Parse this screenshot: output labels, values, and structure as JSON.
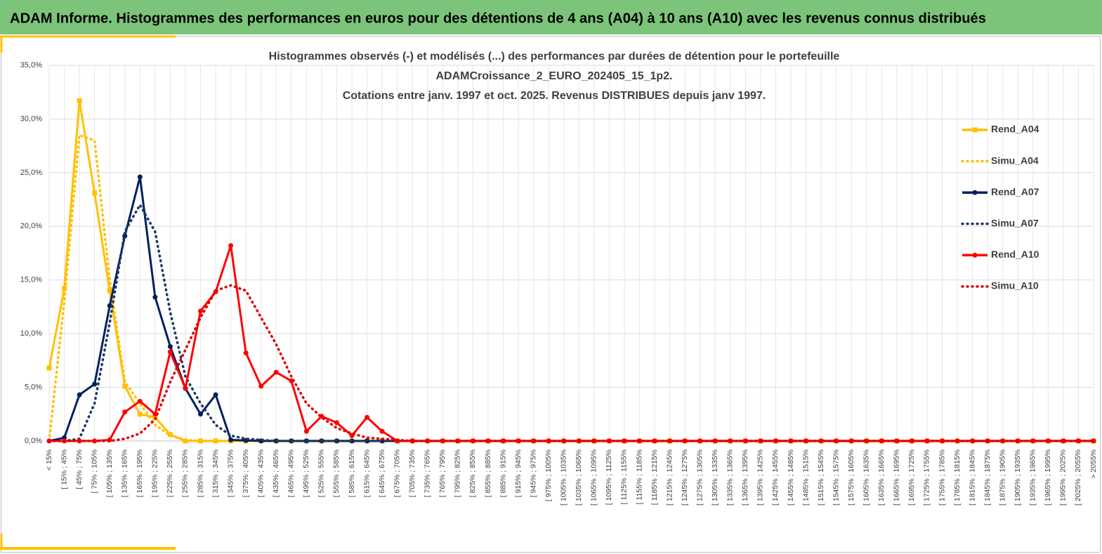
{
  "header": "ADAM Informe. Histogrammes des performances en euros pour des détentions de 4 ans (A04) à 10 ans (A10) avec les revenus connus distribués",
  "chart_data": {
    "type": "line",
    "title": [
      "Histogrammes observés (-) et modélisés (...) des performances par durées de détention pour le portefeuille",
      "ADAMCroissance_2_EURO_202405_15_1p2.",
      "Cotations entre janv. 1997 et oct. 2025. Revenus DISTRIBUES depuis janv 1997."
    ],
    "categories": [
      "< 15%",
      "[ 15% ; 45%",
      "[ 45% ; 75%",
      "[ 75% ; 105%",
      "[ 105% ; 135%",
      "[ 135% ; 165%",
      "[ 165% ; 195%",
      "[ 195% ; 225%",
      "[ 225% ; 255%",
      "[ 255% ; 285%",
      "[ 285% ; 315%",
      "[ 315% ; 345%",
      "[ 345% ; 375%",
      "[ 375% ; 405%",
      "[ 405% ; 435%",
      "[ 435% ; 465%",
      "[ 465% ; 495%",
      "[ 495% ; 525%",
      "[ 525% ; 555%",
      "[ 555% ; 585%",
      "[ 585% ; 615%",
      "[ 615% ; 645%",
      "[ 645% ; 675%",
      "[ 675% ; 705%",
      "[ 705% ; 735%",
      "[ 735% ; 765%",
      "[ 765% ; 795%",
      "[ 795% ; 825%",
      "[ 825% ; 855%",
      "[ 855% ; 885%",
      "[ 885% ; 915%",
      "[ 915% ; 945%",
      "[ 945% ; 975%",
      "[ 975% ; 1005%",
      "[ 1005% ; 1035%",
      "[ 1035% ; 1065%",
      "[ 1065% ; 1095%",
      "[ 1095% ; 1125%",
      "[ 1125% ; 1155%",
      "[ 1155% ; 1185%",
      "[ 1185% ; 1215%",
      "[ 1215% ; 1245%",
      "[ 1245% ; 1275%",
      "[ 1275% ; 1305%",
      "[ 1305% ; 1335%",
      "[ 1335% ; 1365%",
      "[ 1365% ; 1395%",
      "[ 1395% ; 1425%",
      "[ 1425% ; 1455%",
      "[ 1455% ; 1485%",
      "[ 1485% ; 1515%",
      "[ 1515% ; 1545%",
      "[ 1545% ; 1575%",
      "[ 1575% ; 1605%",
      "[ 1605% ; 1635%",
      "[ 1635% ; 1665%",
      "[ 1665% ; 1695%",
      "[ 1695% ; 1725%",
      "[ 1725% ; 1755%",
      "[ 1755% ; 1785%",
      "[ 1785% ; 1815%",
      "[ 1815% ; 1845%",
      "[ 1845% ; 1875%",
      "[ 1875% ; 1905%",
      "[ 1905% ; 1935%",
      "[ 1935% ; 1965%",
      "[ 1965% ; 1995%",
      "[ 1995% ; 2025%",
      "[ 2025% ; 2055%",
      "> 2055%"
    ],
    "series": [
      {
        "name": "Rend_A04",
        "color": "#ffc000",
        "marker": "square",
        "values": [
          6.8,
          14.2,
          31.7,
          23.1,
          14.0,
          5.1,
          2.5,
          2.2,
          0.6,
          0,
          0,
          0,
          0,
          0,
          0,
          0,
          0,
          0,
          0,
          0,
          0,
          0,
          0,
          0,
          0,
          0,
          0,
          0,
          0,
          0,
          0,
          0,
          0,
          0,
          0,
          0,
          0,
          0,
          0,
          0,
          0,
          0,
          0,
          0,
          0,
          0,
          0,
          0,
          0,
          0,
          0,
          0,
          0,
          0,
          0,
          0,
          0,
          0,
          0,
          0,
          0,
          0,
          0,
          0,
          0,
          0,
          0,
          0,
          0,
          0
        ]
      },
      {
        "name": "Simu_A04",
        "color": "#ffc000",
        "dash": true,
        "values": [
          0,
          13,
          28.5,
          28,
          15,
          5.5,
          3.5,
          1.5,
          0.5,
          0.1,
          0,
          0,
          0,
          0,
          0,
          0,
          0,
          0,
          0,
          0,
          0,
          0,
          0,
          0,
          0,
          0,
          0,
          0,
          0,
          0,
          0,
          0,
          0,
          0,
          0,
          0,
          0,
          0,
          0,
          0,
          0,
          0,
          0,
          0,
          0,
          0,
          0,
          0,
          0,
          0,
          0,
          0,
          0,
          0,
          0,
          0,
          0,
          0,
          0,
          0,
          0,
          0,
          0,
          0,
          0,
          0,
          0,
          0,
          0,
          0
        ]
      },
      {
        "name": "Rend_A07",
        "color": "#002060",
        "marker": "circle",
        "values": [
          0,
          0.3,
          4.3,
          5.3,
          12.6,
          19.1,
          24.6,
          13.4,
          8.8,
          4.9,
          2.5,
          4.3,
          0.1,
          0.05,
          0,
          0,
          0,
          0,
          0,
          0,
          0,
          0,
          0,
          0,
          0,
          0,
          0,
          0,
          0,
          0,
          0,
          0,
          0,
          0,
          0,
          0,
          0,
          0,
          0,
          0,
          0,
          0,
          0,
          0,
          0,
          0,
          0,
          0,
          0,
          0,
          0,
          0,
          0,
          0,
          0,
          0,
          0,
          0,
          0,
          0,
          0,
          0,
          0,
          0,
          0,
          0,
          0,
          0,
          0,
          0
        ]
      },
      {
        "name": "Simu_A07",
        "color": "#1f3864",
        "dash": true,
        "values": [
          0,
          0,
          0.2,
          3.5,
          11,
          19.5,
          22,
          19.5,
          12,
          6,
          3.5,
          1.5,
          0.5,
          0.2,
          0.1,
          0,
          0,
          0,
          0,
          0,
          0,
          0,
          0,
          0,
          0,
          0,
          0,
          0,
          0,
          0,
          0,
          0,
          0,
          0,
          0,
          0,
          0,
          0,
          0,
          0,
          0,
          0,
          0,
          0,
          0,
          0,
          0,
          0,
          0,
          0,
          0,
          0,
          0,
          0,
          0,
          0,
          0,
          0,
          0,
          0,
          0,
          0,
          0,
          0,
          0,
          0,
          0,
          0,
          0,
          0
        ]
      },
      {
        "name": "Rend_A10",
        "color": "#ff0000",
        "marker": "circle",
        "values": [
          0,
          0,
          0,
          0,
          0.1,
          2.7,
          3.7,
          2.5,
          8.3,
          4.9,
          12.1,
          13.9,
          18.2,
          8.2,
          5.1,
          6.4,
          5.6,
          0.9,
          2.3,
          1.7,
          0.5,
          2.2,
          0.9,
          0,
          0,
          0,
          0,
          0,
          0,
          0,
          0,
          0,
          0,
          0,
          0,
          0,
          0,
          0,
          0,
          0,
          0,
          0,
          0,
          0,
          0,
          0,
          0,
          0,
          0,
          0,
          0,
          0,
          0,
          0,
          0,
          0,
          0,
          0,
          0,
          0,
          0,
          0,
          0,
          0,
          0,
          0,
          0,
          0,
          0,
          0
        ]
      },
      {
        "name": "Simu_A10",
        "color": "#e00000",
        "dash": true,
        "values": [
          0,
          0,
          0,
          0,
          0,
          0.2,
          0.7,
          2,
          5.5,
          8.5,
          11.5,
          14,
          14.5,
          14,
          11.5,
          9,
          6,
          3.5,
          2.2,
          1.2,
          0.7,
          0.3,
          0.2,
          0.1,
          0,
          0,
          0,
          0,
          0,
          0,
          0,
          0,
          0,
          0,
          0,
          0,
          0,
          0,
          0,
          0,
          0,
          0,
          0,
          0,
          0,
          0,
          0,
          0,
          0,
          0,
          0,
          0,
          0,
          0,
          0,
          0,
          0,
          0,
          0,
          0,
          0,
          0,
          0,
          0,
          0,
          0,
          0,
          0,
          0,
          0
        ]
      }
    ],
    "ylim": [
      0,
      35
    ],
    "yticks": [
      {
        "value": 0,
        "label": "0,0%"
      },
      {
        "value": 5,
        "label": "5,0%"
      },
      {
        "value": 10,
        "label": "10,0%"
      },
      {
        "value": 15,
        "label": "15,0%"
      },
      {
        "value": 20,
        "label": "20,0%"
      },
      {
        "value": 25,
        "label": "25,0%"
      },
      {
        "value": 30,
        "label": "30,0%"
      },
      {
        "value": 35,
        "label": "35,0%"
      }
    ],
    "grid": true,
    "legend": "right"
  }
}
